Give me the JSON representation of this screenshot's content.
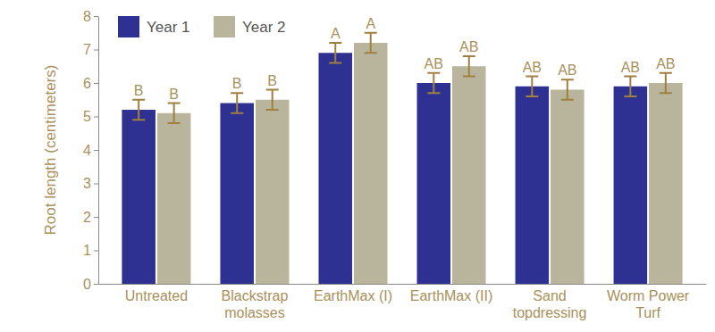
{
  "chart_data": {
    "type": "bar",
    "y_label": "Root length (centimeters)",
    "categories": [
      "Untreated",
      "Blackstrap\nmolasses",
      "EarthMax (I)",
      "EarthMax (II)",
      "Sand\ntopdressing",
      "Worm Power\nTurf"
    ],
    "series": [
      {
        "name": "Year 1",
        "color": "#2e3192",
        "values": [
          5.2,
          5.4,
          6.9,
          6.0,
          5.9,
          5.9
        ],
        "errors": [
          0.3,
          0.3,
          0.3,
          0.3,
          0.3,
          0.3
        ],
        "letters": [
          "B",
          "B",
          "A",
          "AB",
          "AB",
          "AB"
        ]
      },
      {
        "name": "Year 2",
        "color": "#b8b59c",
        "values": [
          5.1,
          5.5,
          7.2,
          6.5,
          5.8,
          6.0
        ],
        "errors": [
          0.3,
          0.3,
          0.3,
          0.3,
          0.3,
          0.3
        ],
        "letters": [
          "B",
          "B",
          "A",
          "AB",
          "AB",
          "AB"
        ]
      }
    ],
    "ylim": [
      0,
      8
    ],
    "yticks": [
      0,
      1,
      2,
      3,
      4,
      5,
      6,
      7,
      8
    ],
    "grid": false,
    "legend": "upper left"
  }
}
